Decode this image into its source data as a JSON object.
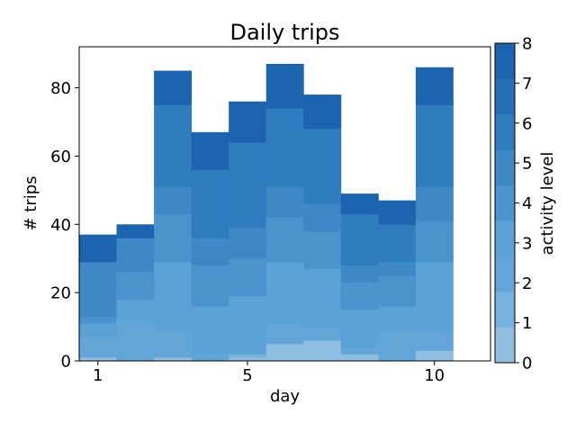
{
  "chart_data": {
    "type": "bar",
    "stacked": true,
    "title": "Daily trips",
    "xlabel": "day",
    "ylabel": "# trips",
    "colorbar_label": "activity level",
    "x": [
      1,
      2,
      3,
      4,
      5,
      6,
      7,
      8,
      9,
      10
    ],
    "x_ticks": [
      1,
      5,
      10
    ],
    "y_ticks": [
      0,
      20,
      40,
      60,
      80
    ],
    "xlim": [
      0.5,
      11.5
    ],
    "ylim": [
      0,
      92
    ],
    "colorbar_ticks": [
      0,
      1,
      2,
      3,
      4,
      5,
      6,
      7,
      8
    ],
    "colorbar_range": [
      0,
      8
    ],
    "level_colors": [
      "#8ebfe2",
      "#76b2de",
      "#62a6d8",
      "#5aa2d6",
      "#4a94cd",
      "#3d89c6",
      "#2f7cbf",
      "#256fb6",
      "#1b65b0"
    ],
    "grid": false,
    "legend": "none",
    "series": [
      {
        "name": "0",
        "values": [
          1,
          0,
          1,
          0,
          1,
          5,
          6,
          2,
          0,
          3
        ]
      },
      {
        "name": "1",
        "values": [
          0,
          0,
          0,
          0,
          1,
          0,
          0,
          0,
          0,
          0
        ]
      },
      {
        "name": "2",
        "values": [
          6,
          12,
          8,
          2,
          0,
          6,
          4,
          2,
          9,
          6
        ]
      },
      {
        "name": "3",
        "values": [
          4,
          6,
          20,
          14,
          17,
          18,
          17,
          11,
          7,
          20
        ]
      },
      {
        "name": "4",
        "values": [
          2,
          8,
          14,
          12,
          11,
          13,
          11,
          8,
          9,
          12
        ]
      },
      {
        "name": "5",
        "values": [
          16,
          10,
          8,
          8,
          9,
          9,
          8,
          5,
          4,
          10
        ]
      },
      {
        "name": "6",
        "values": [
          0,
          0,
          24,
          20,
          25,
          23,
          22,
          15,
          11,
          24
        ]
      },
      {
        "name": "7",
        "values": [
          0,
          0,
          0,
          0,
          0,
          0,
          0,
          0,
          0,
          0
        ]
      },
      {
        "name": "8",
        "values": [
          8,
          4,
          10,
          11,
          12,
          13,
          10,
          6,
          7,
          11
        ]
      }
    ]
  }
}
